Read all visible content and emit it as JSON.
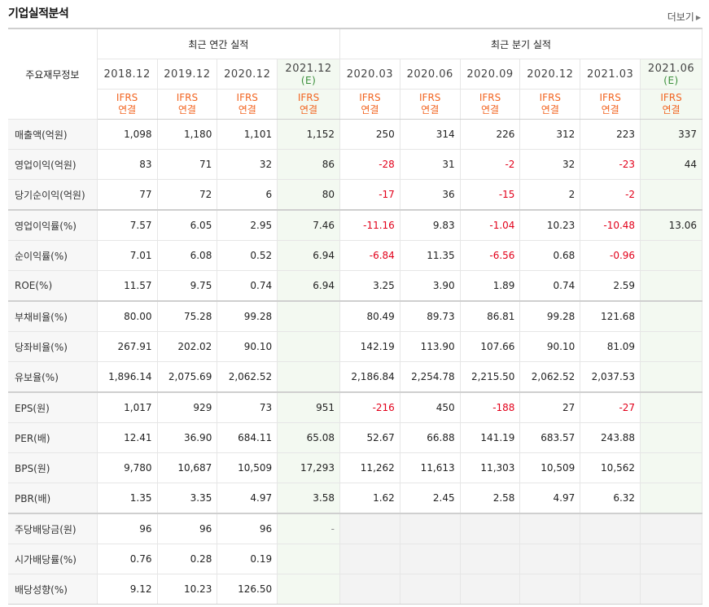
{
  "section": {
    "title": "기업실적분석",
    "more_label": "더보기"
  },
  "table": {
    "row_header": "주요재무정보",
    "annual_group": "최근 연간 실적",
    "quarter_group": "최근 분기 실적",
    "periods": [
      {
        "label": "2018.12",
        "est": ""
      },
      {
        "label": "2019.12",
        "est": ""
      },
      {
        "label": "2020.12",
        "est": ""
      },
      {
        "label": "2021.12",
        "est": "(E)"
      },
      {
        "label": "2020.03",
        "est": ""
      },
      {
        "label": "2020.06",
        "est": ""
      },
      {
        "label": "2020.09",
        "est": ""
      },
      {
        "label": "2020.12",
        "est": ""
      },
      {
        "label": "2021.03",
        "est": ""
      },
      {
        "label": "2021.06",
        "est": "(E)"
      }
    ],
    "ifrs_line1": "IFRS",
    "ifrs_line2": "연결",
    "groups": [
      [
        {
          "label": "매출액(억원)",
          "values": [
            "1,098",
            "1,180",
            "1,101",
            "1,152",
            "250",
            "314",
            "226",
            "312",
            "223",
            "337"
          ]
        },
        {
          "label": "영업이익(억원)",
          "values": [
            "83",
            "71",
            "32",
            "86",
            "-28",
            "31",
            "-2",
            "32",
            "-23",
            "44"
          ]
        },
        {
          "label": "당기순이익(억원)",
          "values": [
            "77",
            "72",
            "6",
            "80",
            "-17",
            "36",
            "-15",
            "2",
            "-2",
            ""
          ]
        }
      ],
      [
        {
          "label": "영업이익률(%)",
          "values": [
            "7.57",
            "6.05",
            "2.95",
            "7.46",
            "-11.16",
            "9.83",
            "-1.04",
            "10.23",
            "-10.48",
            "13.06"
          ]
        },
        {
          "label": "순이익률(%)",
          "values": [
            "7.01",
            "6.08",
            "0.52",
            "6.94",
            "-6.84",
            "11.35",
            "-6.56",
            "0.68",
            "-0.96",
            ""
          ]
        },
        {
          "label": "ROE(%)",
          "values": [
            "11.57",
            "9.75",
            "0.74",
            "6.94",
            "3.25",
            "3.90",
            "1.89",
            "0.74",
            "2.59",
            ""
          ]
        }
      ],
      [
        {
          "label": "부채비율(%)",
          "values": [
            "80.00",
            "75.28",
            "99.28",
            "",
            "80.49",
            "89.73",
            "86.81",
            "99.28",
            "121.68",
            ""
          ]
        },
        {
          "label": "당좌비율(%)",
          "values": [
            "267.91",
            "202.02",
            "90.10",
            "",
            "142.19",
            "113.90",
            "107.66",
            "90.10",
            "81.09",
            ""
          ]
        },
        {
          "label": "유보율(%)",
          "values": [
            "1,896.14",
            "2,075.69",
            "2,062.52",
            "",
            "2,186.84",
            "2,254.78",
            "2,215.50",
            "2,062.52",
            "2,037.53",
            ""
          ]
        }
      ],
      [
        {
          "label": "EPS(원)",
          "values": [
            "1,017",
            "929",
            "73",
            "951",
            "-216",
            "450",
            "-188",
            "27",
            "-27",
            ""
          ]
        },
        {
          "label": "PER(배)",
          "values": [
            "12.41",
            "36.90",
            "684.11",
            "65.08",
            "52.67",
            "66.88",
            "141.19",
            "683.57",
            "243.88",
            ""
          ]
        },
        {
          "label": "BPS(원)",
          "values": [
            "9,780",
            "10,687",
            "10,509",
            "17,293",
            "11,262",
            "11,613",
            "11,303",
            "10,509",
            "10,562",
            ""
          ]
        },
        {
          "label": "PBR(배)",
          "values": [
            "1.35",
            "3.35",
            "4.97",
            "3.58",
            "1.62",
            "2.45",
            "2.58",
            "4.97",
            "6.32",
            ""
          ]
        }
      ],
      [
        {
          "label": "주당배당금(원)",
          "values": [
            "96",
            "96",
            "96",
            "-",
            "",
            "",
            "",
            "",
            "",
            ""
          ]
        },
        {
          "label": "시가배당률(%)",
          "values": [
            "0.76",
            "0.28",
            "0.19",
            "",
            "",
            "",
            "",
            "",
            "",
            ""
          ]
        },
        {
          "label": "배당성향(%)",
          "values": [
            "9.12",
            "10.23",
            "126.50",
            "",
            "",
            "",
            "",
            "",
            "",
            ""
          ]
        }
      ]
    ]
  },
  "colors": {
    "negative": "#e2001a",
    "ifrs": "#f26522",
    "estimate": "#3a8f3a",
    "estimate_bg": "#f3f9f1"
  }
}
